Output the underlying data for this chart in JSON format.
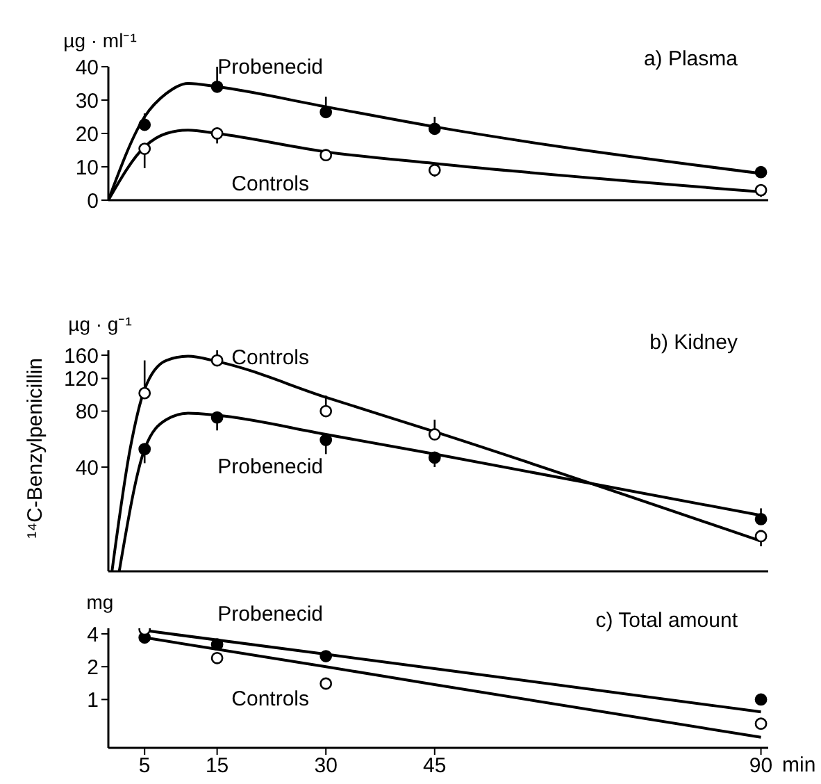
{
  "chart_data": [
    {
      "type": "line",
      "title": "a) Plasma",
      "ylabel": "µg · ml⁻¹",
      "xlim": [
        0,
        91
      ],
      "xticks": [
        5,
        15,
        30,
        45,
        90
      ],
      "ylim": [
        0,
        40
      ],
      "yticks": [
        0,
        10,
        20,
        30,
        40
      ],
      "tick_labels": "y",
      "series": [
        {
          "name": "Probenecid",
          "color": "#000000",
          "marker": "none",
          "x": [
            0,
            5,
            8,
            11,
            15,
            30,
            45,
            90
          ],
          "values": [
            0,
            25,
            32,
            35,
            34,
            28,
            22,
            8
          ]
        },
        {
          "name": "Controls",
          "color": "#000000",
          "marker": "none",
          "x": [
            0,
            5,
            8,
            11,
            15,
            30,
            45,
            90
          ],
          "values": [
            0,
            16,
            20,
            21,
            20,
            14.5,
            11,
            2.5
          ]
        },
        {
          "type": "scatter",
          "color": "#000000",
          "marker": "circle",
          "x": [
            5,
            15,
            30,
            45,
            90
          ],
          "values": [
            22.6,
            34,
            26.4,
            21.4,
            8.4
          ],
          "errors": [
            [
              22.6,
              26
            ],
            [
              34,
              40
            ],
            [
              26.4,
              31
            ],
            [
              21.4,
              25
            ],
            [
              8.4,
              10
            ]
          ]
        },
        {
          "type": "scatter",
          "color": "#ffffff",
          "marker": "circle",
          "x": [
            5,
            15,
            30,
            45,
            90
          ],
          "values": [
            15.4,
            20,
            13.5,
            9,
            3
          ],
          "errors": [
            [
              9.6,
              15.4
            ],
            [
              17,
              20
            ],
            null,
            [
              7,
              9
            ],
            [
              1,
              3
            ]
          ]
        }
      ]
    },
    {
      "type": "line",
      "title": "b) Kidney",
      "ylabel": "µg · g⁻¹",
      "annotations": [
        "¹⁴C-Benzylpenicillin"
      ],
      "log": true,
      "xlim": [
        0,
        91
      ],
      "xticks": [
        5,
        15,
        30,
        45,
        90
      ],
      "ylim": [
        11,
        170
      ],
      "yticks": [
        40,
        80,
        120,
        160
      ],
      "tick_labels": "y",
      "series": [
        {
          "name": "Controls",
          "color": "#000000",
          "marker": "none",
          "x": [
            0.5,
            3,
            5,
            8,
            11,
            15,
            30,
            45,
            90
          ],
          "values": [
            11,
            50,
            105,
            150,
            158,
            148,
            95,
            62,
            16
          ]
        },
        {
          "name": "Probenecid",
          "color": "#000000",
          "marker": "none",
          "x": [
            1.5,
            5,
            8,
            11,
            15,
            30,
            45,
            90
          ],
          "values": [
            11,
            50,
            72,
            78,
            76,
            60,
            47,
            22
          ]
        },
        {
          "type": "scatter",
          "color": "#ffffff",
          "marker": "circle",
          "x": [
            5,
            15,
            30,
            45,
            90
          ],
          "values": [
            100,
            150,
            80,
            60,
            17
          ],
          "errors": [
            [
              100,
              150
            ],
            [
              150,
              170
            ],
            [
              80,
              97
            ],
            [
              60,
              72
            ],
            [
              15,
              17
            ]
          ]
        },
        {
          "type": "scatter",
          "color": "#000000",
          "marker": "circle",
          "x": [
            5,
            15,
            30,
            45,
            90
          ],
          "values": [
            50,
            74,
            56,
            45,
            21
          ],
          "errors": [
            [
              42,
              50
            ],
            [
              63,
              74
            ],
            [
              47,
              56
            ],
            [
              40,
              45
            ],
            [
              21,
              24
            ]
          ]
        }
      ]
    },
    {
      "type": "line",
      "title": "c) Total amount",
      "ylabel": "mg",
      "xlabel": "min",
      "log": true,
      "xlim": [
        0,
        91
      ],
      "xticks": [
        5,
        15,
        30,
        45,
        90
      ],
      "ylim": [
        0.36,
        4.5
      ],
      "yticks": [
        1,
        2,
        4
      ],
      "series": [
        {
          "name": "Probenecid",
          "color": "#000000",
          "marker": "none",
          "x": [
            5,
            30,
            45,
            90
          ],
          "values": [
            4.3,
            2.6,
            1.92,
            0.77
          ]
        },
        {
          "name": "Controls",
          "color": "#000000",
          "marker": "none",
          "x": [
            5,
            30,
            45,
            90
          ],
          "values": [
            3.7,
            2.0,
            1.37,
            0.45
          ]
        },
        {
          "type": "scatter",
          "color": "#000000",
          "marker": "circle",
          "x": [
            5,
            15,
            30,
            90
          ],
          "values": [
            3.7,
            3.2,
            2.5,
            1.0
          ]
        },
        {
          "type": "scatter",
          "color": "#ffffff",
          "marker": "circle",
          "x": [
            5,
            15,
            30,
            90
          ],
          "values": [
            4.4,
            2.4,
            1.4,
            0.6
          ]
        }
      ]
    }
  ]
}
